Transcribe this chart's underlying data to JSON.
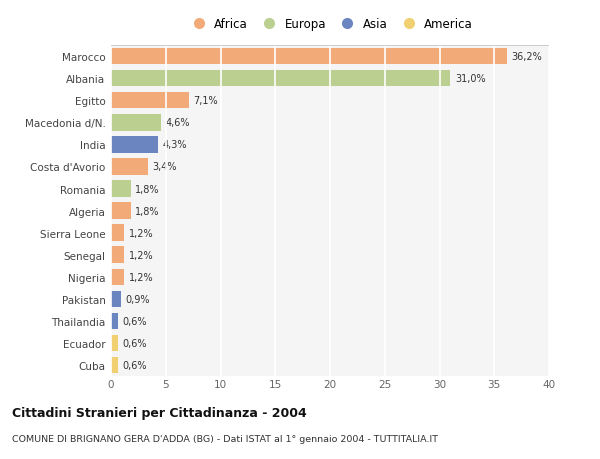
{
  "countries": [
    "Marocco",
    "Albania",
    "Egitto",
    "Macedonia d/N.",
    "India",
    "Costa d'Avorio",
    "Romania",
    "Algeria",
    "Sierra Leone",
    "Senegal",
    "Nigeria",
    "Pakistan",
    "Thailandia",
    "Ecuador",
    "Cuba"
  ],
  "values": [
    36.2,
    31.0,
    7.1,
    4.6,
    4.3,
    3.4,
    1.8,
    1.8,
    1.2,
    1.2,
    1.2,
    0.9,
    0.6,
    0.6,
    0.6
  ],
  "labels": [
    "36,2%",
    "31,0%",
    "7,1%",
    "4,6%",
    "4,3%",
    "3,4%",
    "1,8%",
    "1,8%",
    "1,2%",
    "1,2%",
    "1,2%",
    "0,9%",
    "0,6%",
    "0,6%",
    "0,6%"
  ],
  "continents": [
    "Africa",
    "Europa",
    "Africa",
    "Europa",
    "Asia",
    "Africa",
    "Europa",
    "Africa",
    "Africa",
    "Africa",
    "Africa",
    "Asia",
    "Asia",
    "America",
    "America"
  ],
  "colors": {
    "Africa": "#F2AA78",
    "Europa": "#BACF90",
    "Asia": "#6B85C0",
    "America": "#F0D070"
  },
  "legend_order": [
    "Africa",
    "Europa",
    "Asia",
    "America"
  ],
  "xlim": [
    0,
    40
  ],
  "xticks": [
    0,
    5,
    10,
    15,
    20,
    25,
    30,
    35,
    40
  ],
  "title": "Cittadini Stranieri per Cittadinanza - 2004",
  "subtitle": "COMUNE DI BRIGNANO GERA D'ADDA (BG) - Dati ISTAT al 1° gennaio 2004 - TUTTITALIA.IT",
  "bg_color": "#FFFFFF",
  "plot_bg_color": "#F5F5F5",
  "grid_color": "#FFFFFF",
  "bar_height": 0.75
}
